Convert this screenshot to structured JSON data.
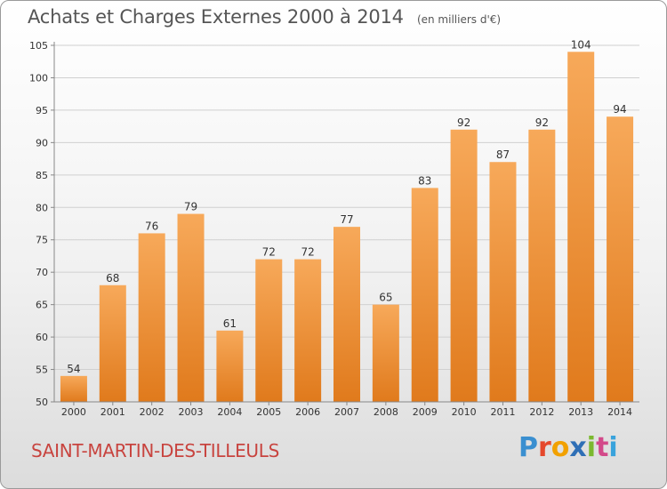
{
  "header": {
    "title": "Achats et Charges Externes 2000 à 2014",
    "subtitle": "(en milliers d'€)"
  },
  "footer": {
    "commune": "SAINT-MARTIN-DES-TILLEULS",
    "logo_text": "Proxiti"
  },
  "colors": {
    "bar_light": "#f7a95a",
    "bar_dark": "#e07a1c",
    "title": "#555555",
    "commune": "#c8443f"
  },
  "chart_data": {
    "type": "bar",
    "title": "Achats et Charges Externes 2000 à 2014",
    "subtitle": "(en milliers d'€)",
    "categories": [
      "2000",
      "2001",
      "2002",
      "2003",
      "2004",
      "2005",
      "2006",
      "2007",
      "2008",
      "2009",
      "2010",
      "2011",
      "2012",
      "2013",
      "2014"
    ],
    "values": [
      54,
      68,
      76,
      79,
      61,
      72,
      72,
      77,
      65,
      83,
      92,
      87,
      92,
      104,
      94
    ],
    "ylim": [
      50,
      105
    ],
    "yticks": [
      50,
      55,
      60,
      65,
      70,
      75,
      80,
      85,
      90,
      95,
      100,
      105
    ],
    "grid": true,
    "legend": "none"
  }
}
